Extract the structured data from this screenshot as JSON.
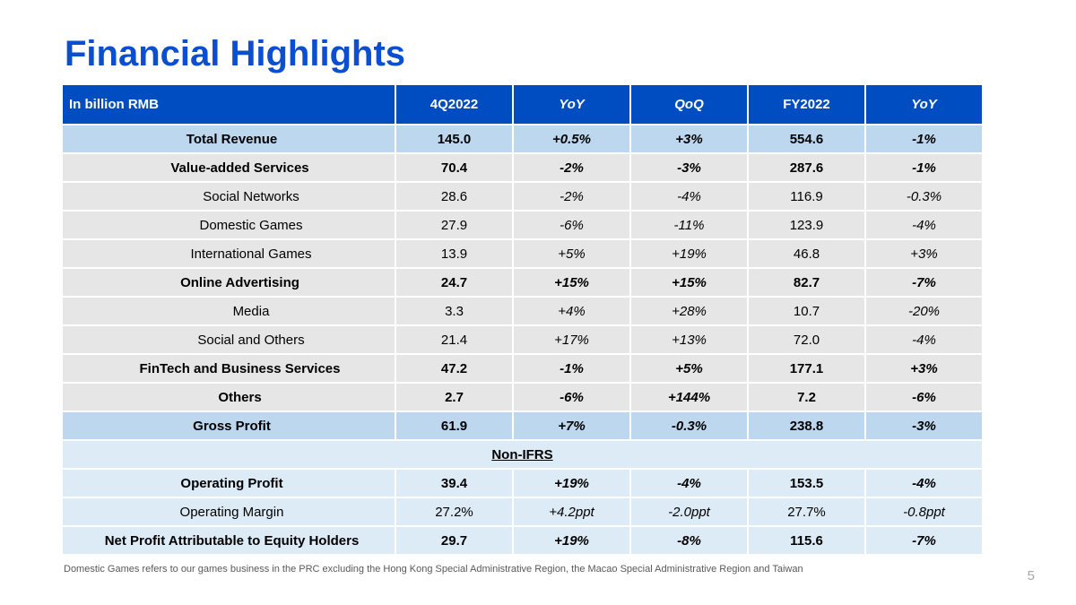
{
  "title": "Financial Highlights",
  "table": {
    "headers": [
      "In billion RMB",
      "4Q2022",
      "YoY",
      "QoQ",
      "FY2022",
      "YoY"
    ],
    "rows": [
      {
        "label": "Total Revenue",
        "values": [
          "145.0",
          "+0.5%",
          "+3%",
          "554.6",
          "-1%"
        ]
      },
      {
        "label": "Value-added Services",
        "values": [
          "70.4",
          "-2%",
          "-3%",
          "287.6",
          "-1%"
        ]
      },
      {
        "label": "Social Networks",
        "values": [
          "28.6",
          "-2%",
          "-4%",
          "116.9",
          "-0.3%"
        ]
      },
      {
        "label": "Domestic Games",
        "values": [
          "27.9",
          "-6%",
          "-11%",
          "123.9",
          "-4%"
        ]
      },
      {
        "label": "International Games",
        "values": [
          "13.9",
          "+5%",
          "+19%",
          "46.8",
          "+3%"
        ]
      },
      {
        "label": "Online Advertising",
        "values": [
          "24.7",
          "+15%",
          "+15%",
          "82.7",
          "-7%"
        ]
      },
      {
        "label": "Media",
        "values": [
          "3.3",
          "+4%",
          "+28%",
          "10.7",
          "-20%"
        ]
      },
      {
        "label": "Social and Others",
        "values": [
          "21.4",
          "+17%",
          "+13%",
          "72.0",
          "-4%"
        ]
      },
      {
        "label": "FinTech and Business Services",
        "values": [
          "47.2",
          "-1%",
          "+5%",
          "177.1",
          "+3%"
        ]
      },
      {
        "label": "Others",
        "values": [
          "2.7",
          "-6%",
          "+144%",
          "7.2",
          "-6%"
        ]
      },
      {
        "label": "Gross Profit",
        "values": [
          "61.9",
          "+7%",
          "-0.3%",
          "238.8",
          "-3%"
        ]
      }
    ],
    "section_label": "Non-IFRS",
    "non_ifrs_rows": [
      {
        "label": "Operating Profit",
        "values": [
          "39.4",
          "+19%",
          "-4%",
          "153.5",
          "-4%"
        ]
      },
      {
        "label": "Operating Margin",
        "values": [
          "27.2%",
          "+4.2ppt",
          "-2.0ppt",
          "27.7%",
          "-0.8ppt"
        ]
      },
      {
        "label": "Net Profit Attributable to Equity Holders",
        "values": [
          "29.7",
          "+19%",
          "-8%",
          "115.6",
          "-7%"
        ]
      }
    ]
  },
  "footnote": "Domestic Games refers to our games business in the PRC excluding the Hong Kong Special Administrative Region, the Macao Special Administrative Region and Taiwan",
  "page_number": "5",
  "colors": {
    "title": "#0a4fd0",
    "header_bg": "#004dc1",
    "total_row_bg": "#bdd7ee",
    "segment_row_bg": "#e6e6e6",
    "non_ifrs_row_bg": "#ddebf7"
  }
}
